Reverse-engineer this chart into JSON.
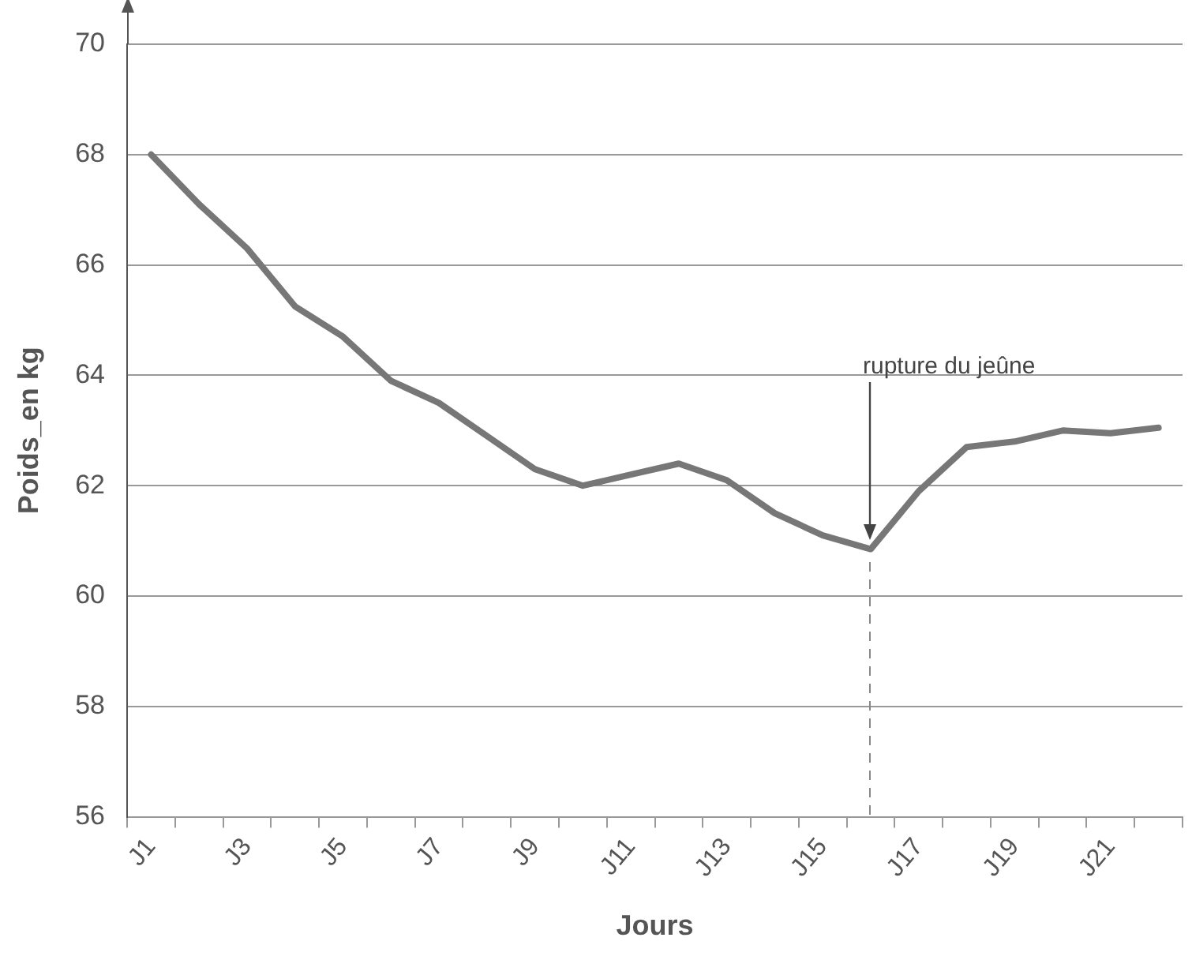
{
  "chart_data": {
    "type": "line",
    "xlabel": "Jours",
    "ylabel": "Poids_en kg",
    "categories": [
      "J1",
      null,
      "J3",
      null,
      "J5",
      null,
      "J7",
      null,
      "J9",
      null,
      "J11",
      null,
      "J13",
      null,
      "J15",
      null,
      "J17",
      null,
      "J19",
      null,
      "J21",
      null
    ],
    "series": [
      {
        "color": "#777777",
        "values": [
          68.0,
          67.1,
          66.3,
          65.25,
          64.7,
          63.9,
          63.5,
          62.9,
          62.3,
          62.0,
          62.2,
          62.4,
          62.1,
          61.5,
          61.1,
          60.85,
          61.9,
          62.7,
          62.8,
          63.0,
          62.95,
          63.05
        ]
      }
    ],
    "ylim": [
      56,
      70
    ],
    "yticks": [
      56,
      58,
      60,
      62,
      64,
      66,
      68,
      70
    ],
    "grid": "y",
    "legend": false,
    "marker": "none",
    "line_style": "solid",
    "annotations": [
      "rupture du jeûne"
    ]
  }
}
